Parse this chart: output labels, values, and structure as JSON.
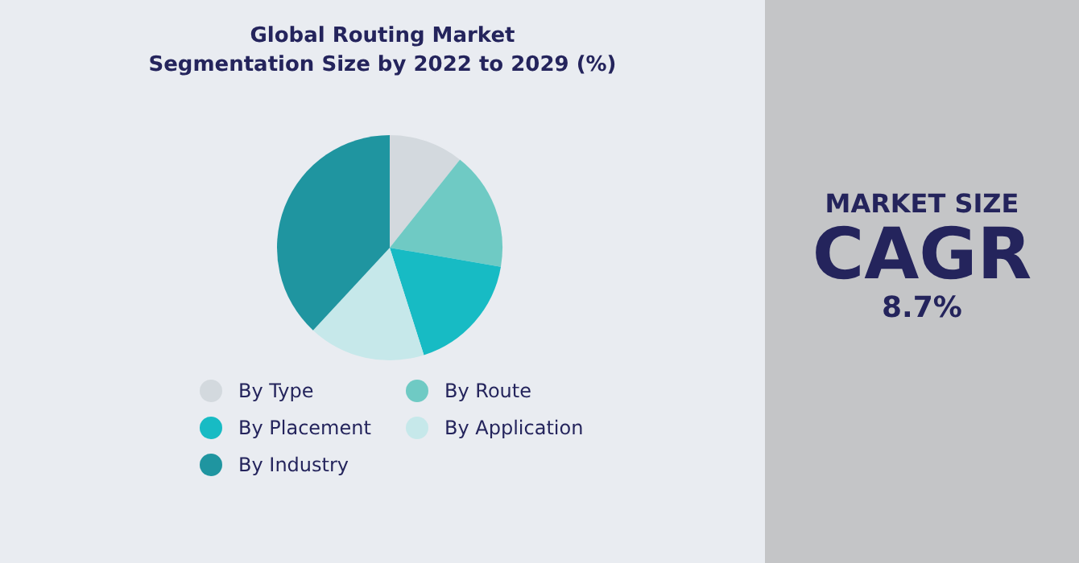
{
  "chart_data": {
    "type": "pie",
    "title": "Global Routing Market\nSegmentation Size by 2022 to 2029 (%)",
    "categories": [
      "By Type",
      "By Route",
      "By Placement",
      "By Application",
      "By Industry"
    ],
    "values": [
      10.7,
      17.0,
      17.4,
      16.8,
      38.1
    ],
    "colors": [
      "#d3d9de",
      "#6fcac4",
      "#17bbc4",
      "#c6e8ea",
      "#1f95a0"
    ],
    "legend": "bottom",
    "annotations": [
      "MARKET SIZE",
      "CAGR",
      "8.7%"
    ]
  }
}
